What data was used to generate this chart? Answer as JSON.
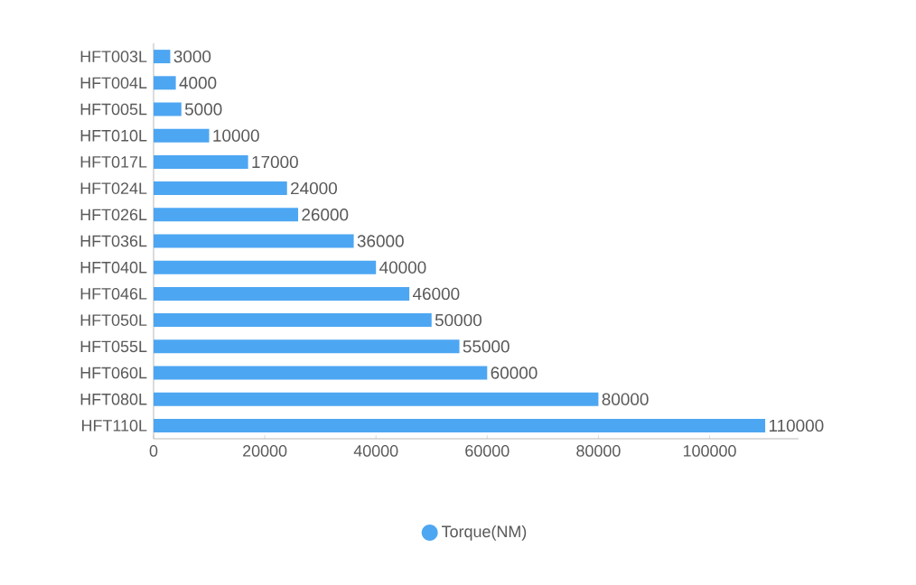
{
  "chart_data": {
    "type": "bar",
    "orientation": "horizontal",
    "categories": [
      "HFT003L",
      "HFT004L",
      "HFT005L",
      "HFT010L",
      "HFT017L",
      "HFT024L",
      "HFT026L",
      "HFT036L",
      "HFT040L",
      "HFT046L",
      "HFT050L",
      "HFT055L",
      "HFT060L",
      "HFT080L",
      "HFT110L"
    ],
    "series": [
      {
        "name": "Torque(NM)",
        "color": "#4da6f2",
        "values": [
          3000,
          4000,
          5000,
          10000,
          17000,
          24000,
          26000,
          36000,
          40000,
          46000,
          50000,
          55000,
          60000,
          80000,
          110000
        ]
      }
    ],
    "xlim": [
      0,
      116000
    ],
    "xticks": [
      0,
      20000,
      40000,
      60000,
      80000,
      100000
    ],
    "data_labels": true,
    "legend": "bottom",
    "grid": false
  }
}
